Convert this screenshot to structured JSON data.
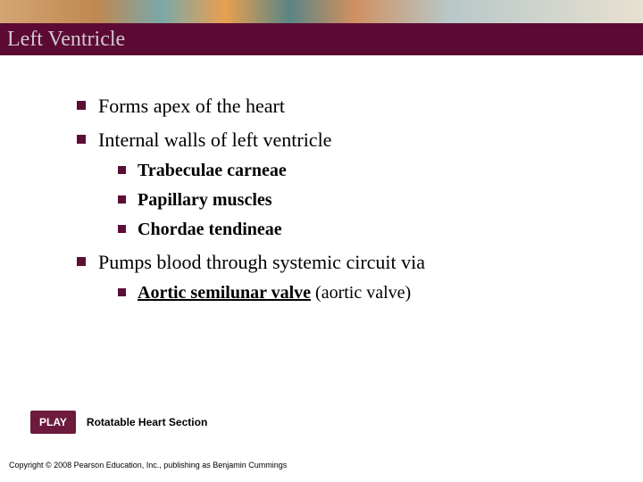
{
  "title": "Left Ventricle",
  "bullets": {
    "b1": "Forms apex of the heart",
    "b2": "Internal walls of left ventricle",
    "b2_subs": {
      "s1": "Trabeculae carneae",
      "s2": "Papillary muscles",
      "s3": "Chordae tendineae"
    },
    "b3": "Pumps blood through systemic circuit via",
    "b3_subs": {
      "s1_underline": "Aortic semilunar valve",
      "s1_rest": " (aortic valve)"
    }
  },
  "play": {
    "button": "PLAY",
    "label": "Rotatable Heart Section"
  },
  "copyright": "Copyright © 2008 Pearson Education, Inc., publishing as Benjamin Cummings",
  "colors": {
    "title_bar_bg": "#5c0a33",
    "bullet_color": "#5d0e36",
    "play_bg": "#6d1a3d"
  }
}
